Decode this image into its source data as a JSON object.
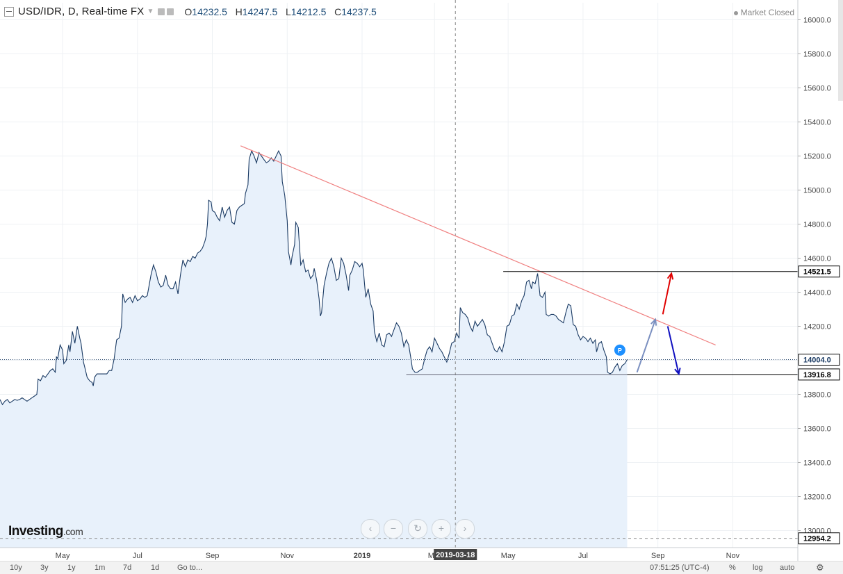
{
  "header": {
    "symbol": "USD/IDR, D, Real-time FX",
    "open_label": "O",
    "open": "14232.5",
    "high_label": "H",
    "high": "14247.5",
    "low_label": "L",
    "low": "14212.5",
    "close_label": "C",
    "close": "14237.5",
    "status": "Market Closed"
  },
  "chart_data": {
    "type": "area",
    "ylim": [
      12900,
      16100
    ],
    "y_ticks": [
      "16000.0",
      "15800.0",
      "15600.0",
      "15400.0",
      "15200.0",
      "15000.0",
      "14800.0",
      "14600.0",
      "14400.0",
      "14200.0",
      "14000.0",
      "13800.0",
      "13600.0",
      "13400.0",
      "13200.0",
      "13000.0"
    ],
    "x_ticks": [
      "May",
      "Jul",
      "Sep",
      "Nov",
      "2019",
      "Mar",
      "May",
      "Jul",
      "Sep",
      "Nov"
    ],
    "x_ticks_day_index": [
      21,
      82,
      143,
      204,
      265,
      324,
      384,
      445,
      506,
      567
    ],
    "x_range_days": [
      -30,
      620
    ],
    "crosshair_label": "2019-03-18",
    "crosshair_day": 341,
    "series": [
      {
        "values": [
          [
            -30,
            13770
          ],
          [
            -28,
            13740
          ],
          [
            -26,
            13760
          ],
          [
            -24,
            13770
          ],
          [
            -22,
            13750
          ],
          [
            -20,
            13760
          ],
          [
            -18,
            13770
          ],
          [
            -16,
            13765
          ],
          [
            -14,
            13770
          ],
          [
            -12,
            13780
          ],
          [
            -10,
            13770
          ],
          [
            -8,
            13760
          ],
          [
            -6,
            13770
          ],
          [
            -4,
            13780
          ],
          [
            -2,
            13790
          ],
          [
            0,
            13800
          ],
          [
            1,
            13890
          ],
          [
            3,
            13880
          ],
          [
            5,
            13910
          ],
          [
            7,
            13900
          ],
          [
            9,
            13920
          ],
          [
            11,
            13940
          ],
          [
            13,
            13950
          ],
          [
            15,
            13930
          ],
          [
            16,
            14020
          ],
          [
            17,
            14010
          ],
          [
            19,
            14090
          ],
          [
            21,
            14060
          ],
          [
            22,
            13980
          ],
          [
            24,
            14000
          ],
          [
            26,
            14090
          ],
          [
            27,
            14050
          ],
          [
            29,
            14170
          ],
          [
            31,
            14100
          ],
          [
            33,
            14200
          ],
          [
            35,
            14130
          ],
          [
            36,
            14100
          ],
          [
            38,
            13990
          ],
          [
            39,
            13960
          ],
          [
            41,
            13900
          ],
          [
            43,
            13880
          ],
          [
            45,
            13870
          ],
          [
            46,
            13850
          ],
          [
            47,
            13900
          ],
          [
            49,
            13920
          ],
          [
            51,
            13920
          ],
          [
            53,
            13920
          ],
          [
            55,
            13920
          ],
          [
            57,
            13920
          ],
          [
            59,
            13940
          ],
          [
            61,
            13940
          ],
          [
            63,
            14010
          ],
          [
            65,
            14120
          ],
          [
            67,
            14130
          ],
          [
            69,
            14200
          ],
          [
            70,
            14390
          ],
          [
            72,
            14340
          ],
          [
            74,
            14360
          ],
          [
            76,
            14370
          ],
          [
            78,
            14340
          ],
          [
            80,
            14380
          ],
          [
            82,
            14350
          ],
          [
            84,
            14360
          ],
          [
            86,
            14380
          ],
          [
            88,
            14370
          ],
          [
            90,
            14380
          ],
          [
            91,
            14420
          ],
          [
            93,
            14500
          ],
          [
            95,
            14560
          ],
          [
            97,
            14520
          ],
          [
            99,
            14460
          ],
          [
            101,
            14430
          ],
          [
            103,
            14440
          ],
          [
            105,
            14500
          ],
          [
            107,
            14440
          ],
          [
            109,
            14420
          ],
          [
            111,
            14420
          ],
          [
            113,
            14460
          ],
          [
            115,
            14390
          ],
          [
            117,
            14500
          ],
          [
            119,
            14590
          ],
          [
            121,
            14550
          ],
          [
            123,
            14590
          ],
          [
            125,
            14580
          ],
          [
            127,
            14610
          ],
          [
            129,
            14600
          ],
          [
            131,
            14630
          ],
          [
            133,
            14640
          ],
          [
            135,
            14660
          ],
          [
            137,
            14700
          ],
          [
            138,
            14730
          ],
          [
            139,
            14800
          ],
          [
            140,
            14940
          ],
          [
            142,
            14930
          ],
          [
            143,
            14880
          ],
          [
            145,
            14870
          ],
          [
            147,
            14840
          ],
          [
            149,
            14820
          ],
          [
            151,
            14900
          ],
          [
            153,
            14840
          ],
          [
            155,
            14880
          ],
          [
            157,
            14900
          ],
          [
            159,
            14810
          ],
          [
            161,
            14800
          ],
          [
            163,
            14880
          ],
          [
            165,
            14900
          ],
          [
            167,
            14910
          ],
          [
            169,
            14920
          ],
          [
            170,
            14980
          ],
          [
            172,
            15030
          ],
          [
            173,
            15180
          ],
          [
            175,
            15230
          ],
          [
            177,
            15200
          ],
          [
            179,
            15160
          ],
          [
            181,
            15220
          ],
          [
            183,
            15200
          ],
          [
            185,
            15180
          ],
          [
            187,
            15160
          ],
          [
            189,
            15170
          ],
          [
            191,
            15190
          ],
          [
            193,
            15170
          ],
          [
            195,
            15200
          ],
          [
            197,
            15230
          ],
          [
            199,
            15200
          ],
          [
            200,
            15050
          ],
          [
            202,
            14970
          ],
          [
            204,
            14820
          ],
          [
            205,
            14640
          ],
          [
            207,
            14560
          ],
          [
            208,
            14610
          ],
          [
            210,
            14680
          ],
          [
            211,
            14810
          ],
          [
            213,
            14780
          ],
          [
            215,
            14560
          ],
          [
            217,
            14590
          ],
          [
            219,
            14520
          ],
          [
            221,
            14530
          ],
          [
            223,
            14480
          ],
          [
            225,
            14500
          ],
          [
            226,
            14540
          ],
          [
            228,
            14470
          ],
          [
            230,
            14360
          ],
          [
            231,
            14260
          ],
          [
            232,
            14280
          ],
          [
            234,
            14440
          ],
          [
            236,
            14510
          ],
          [
            238,
            14570
          ],
          [
            240,
            14600
          ],
          [
            242,
            14550
          ],
          [
            244,
            14470
          ],
          [
            246,
            14480
          ],
          [
            248,
            14600
          ],
          [
            250,
            14570
          ],
          [
            252,
            14500
          ],
          [
            254,
            14410
          ],
          [
            255,
            14500
          ],
          [
            257,
            14530
          ],
          [
            259,
            14580
          ],
          [
            261,
            14570
          ],
          [
            263,
            14550
          ],
          [
            265,
            14570
          ],
          [
            266,
            14530
          ],
          [
            267,
            14450
          ],
          [
            268,
            14370
          ],
          [
            270,
            14420
          ],
          [
            272,
            14330
          ],
          [
            274,
            14290
          ],
          [
            275,
            14170
          ],
          [
            277,
            14110
          ],
          [
            279,
            14160
          ],
          [
            281,
            14090
          ],
          [
            283,
            14080
          ],
          [
            285,
            14150
          ],
          [
            287,
            14160
          ],
          [
            289,
            14140
          ],
          [
            291,
            14180
          ],
          [
            293,
            14220
          ],
          [
            295,
            14200
          ],
          [
            297,
            14160
          ],
          [
            299,
            14080
          ],
          [
            301,
            14120
          ],
          [
            303,
            14090
          ],
          [
            305,
            14000
          ],
          [
            306,
            13950
          ],
          [
            308,
            13930
          ],
          [
            310,
            13930
          ],
          [
            312,
            13940
          ],
          [
            314,
            13950
          ],
          [
            316,
            14010
          ],
          [
            318,
            14060
          ],
          [
            320,
            14080
          ],
          [
            322,
            14050
          ],
          [
            324,
            14130
          ],
          [
            326,
            14100
          ],
          [
            328,
            14070
          ],
          [
            330,
            14050
          ],
          [
            332,
            14020
          ],
          [
            334,
            13990
          ],
          [
            336,
            14040
          ],
          [
            338,
            14100
          ],
          [
            340,
            14110
          ],
          [
            342,
            14160
          ],
          [
            344,
            14130
          ],
          [
            345,
            14310
          ],
          [
            347,
            14280
          ],
          [
            349,
            14270
          ],
          [
            351,
            14250
          ],
          [
            353,
            14200
          ],
          [
            355,
            14170
          ],
          [
            357,
            14230
          ],
          [
            359,
            14200
          ],
          [
            361,
            14220
          ],
          [
            363,
            14240
          ],
          [
            365,
            14210
          ],
          [
            367,
            14150
          ],
          [
            369,
            14140
          ],
          [
            371,
            14100
          ],
          [
            373,
            14060
          ],
          [
            375,
            14050
          ],
          [
            377,
            14080
          ],
          [
            379,
            14050
          ],
          [
            381,
            14110
          ],
          [
            383,
            14200
          ],
          [
            385,
            14210
          ],
          [
            387,
            14260
          ],
          [
            389,
            14270
          ],
          [
            391,
            14330
          ],
          [
            393,
            14300
          ],
          [
            395,
            14350
          ],
          [
            397,
            14380
          ],
          [
            399,
            14460
          ],
          [
            401,
            14470
          ],
          [
            403,
            14420
          ],
          [
            404,
            14460
          ],
          [
            406,
            14450
          ],
          [
            408,
            14510
          ],
          [
            410,
            14380
          ],
          [
            412,
            14370
          ],
          [
            414,
            14400
          ],
          [
            415,
            14270
          ],
          [
            417,
            14260
          ],
          [
            419,
            14270
          ],
          [
            421,
            14270
          ],
          [
            423,
            14260
          ],
          [
            425,
            14240
          ],
          [
            427,
            14230
          ],
          [
            429,
            14220
          ],
          [
            431,
            14280
          ],
          [
            433,
            14330
          ],
          [
            435,
            14320
          ],
          [
            437,
            14210
          ],
          [
            439,
            14200
          ],
          [
            441,
            14150
          ],
          [
            443,
            14120
          ],
          [
            445,
            14140
          ],
          [
            447,
            14130
          ],
          [
            449,
            14110
          ],
          [
            451,
            14130
          ],
          [
            453,
            14100
          ],
          [
            455,
            14120
          ],
          [
            456,
            14050
          ],
          [
            458,
            14100
          ],
          [
            460,
            14110
          ],
          [
            462,
            14060
          ],
          [
            464,
            14020
          ],
          [
            465,
            13930
          ],
          [
            467,
            13920
          ],
          [
            469,
            13930
          ],
          [
            471,
            13960
          ],
          [
            473,
            13980
          ],
          [
            475,
            13940
          ],
          [
            477,
            13970
          ],
          [
            479,
            13980
          ],
          [
            481,
            14004
          ]
        ]
      }
    ],
    "trendline": {
      "from": [
        166,
        15260
      ],
      "to": [
        553,
        14090
      ]
    },
    "support_line": {
      "from": [
        301,
        13917
      ],
      "to": [
        481,
        13917
      ]
    },
    "resistance_line": {
      "from": [
        380,
        14521.5
      ],
      "to": [
        620,
        14521.5
      ]
    },
    "current_price": "14004.0",
    "current_value": 14004,
    "resistance_label": "14521.5",
    "resistance_value": 14521.5,
    "support_label": "13916.8",
    "support_value": 13916.8,
    "low_label": "12954.2",
    "low_value": 12954.2,
    "arrows": [
      {
        "color": "#7a8fc0",
        "from": [
          489,
          13930
        ],
        "to": [
          504,
          14240
        ]
      },
      {
        "color": "#e00000",
        "from": [
          510,
          14270
        ],
        "to": [
          517,
          14510
        ]
      },
      {
        "color": "#1010c0",
        "from": [
          514,
          14200
        ],
        "to": [
          523,
          13920
        ]
      }
    ],
    "colors": {
      "line": "#1a3a63",
      "fill": "#e8f1fb",
      "trend": "#f08080",
      "grid": "#eef1f4"
    }
  },
  "branding": {
    "logo": "Investing",
    "logo_suffix": ".com"
  },
  "marker": "P",
  "timeframes": [
    "10y",
    "3y",
    "1y",
    "1m",
    "7d",
    "1d"
  ],
  "goto_label": "Go to...",
  "time_label": "07:51:25 (UTC-4)",
  "bottom_right": [
    "%",
    "log",
    "auto"
  ]
}
